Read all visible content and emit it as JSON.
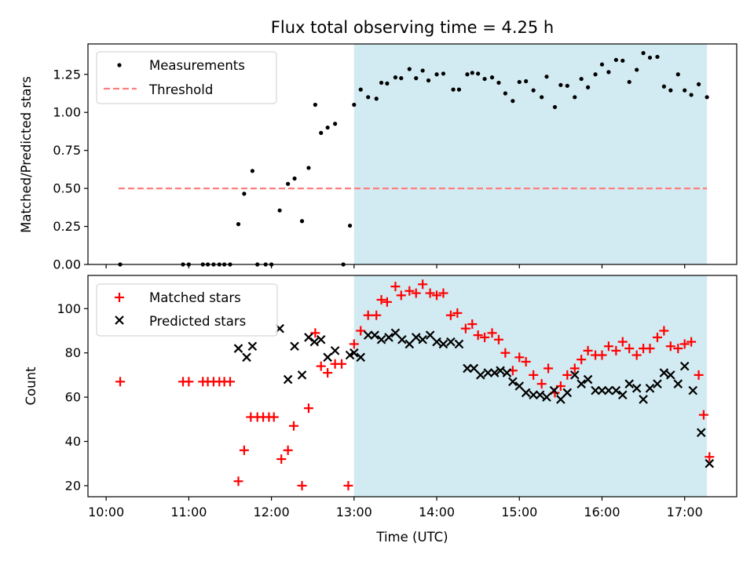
{
  "chart_data": {
    "title": "Flux total observing time = 4.25 h",
    "xlabel": "Time (UTC)",
    "x_unit": "hours UTC",
    "xlim": [
      9.78,
      17.63
    ],
    "x_tick_values": [
      10,
      11,
      12,
      13,
      14,
      15,
      16,
      17
    ],
    "x_tick_labels": [
      "10:00",
      "11:00",
      "12:00",
      "13:00",
      "14:00",
      "15:00",
      "16:00",
      "17:00"
    ],
    "shaded_region": {
      "x_range": [
        13.0,
        17.27
      ],
      "color": "#add8e6"
    },
    "panels": [
      {
        "type": "scatter",
        "ylabel": "Matched/Predicted stars",
        "ylim": [
          0,
          1.45
        ],
        "y_tick_values": [
          0.0,
          0.25,
          0.5,
          0.75,
          1.0,
          1.25
        ],
        "y_tick_labels": [
          "0.00",
          "0.25",
          "0.50",
          "0.75",
          "1.00",
          "1.25"
        ],
        "legend": {
          "position": "upper-left",
          "entries": [
            "Measurements",
            "Threshold"
          ]
        },
        "series": [
          {
            "name": "Measurements",
            "marker": "dot",
            "color": "#000000",
            "points": [
              [
                10.17,
                0.0
              ],
              [
                10.93,
                0.0
              ],
              [
                11.0,
                0.0
              ],
              [
                11.17,
                0.0
              ],
              [
                11.23,
                0.0
              ],
              [
                11.3,
                0.0
              ],
              [
                11.37,
                0.0
              ],
              [
                11.43,
                0.0
              ],
              [
                11.5,
                0.0
              ],
              [
                11.6,
                0.265
              ],
              [
                11.67,
                0.465
              ],
              [
                11.77,
                0.615
              ],
              [
                11.83,
                0.0
              ],
              [
                11.93,
                0.0
              ],
              [
                12.0,
                0.0
              ],
              [
                12.1,
                0.355
              ],
              [
                12.2,
                0.53
              ],
              [
                12.28,
                0.565
              ],
              [
                12.37,
                0.285
              ],
              [
                12.45,
                0.635
              ],
              [
                12.53,
                1.05
              ],
              [
                12.6,
                0.865
              ],
              [
                12.68,
                0.9
              ],
              [
                12.77,
                0.925
              ],
              [
                12.87,
                0.0
              ],
              [
                12.95,
                0.255
              ],
              [
                13.0,
                1.05
              ],
              [
                13.08,
                1.15
              ],
              [
                13.17,
                1.1
              ],
              [
                13.27,
                1.09
              ],
              [
                13.33,
                1.195
              ],
              [
                13.4,
                1.19
              ],
              [
                13.5,
                1.23
              ],
              [
                13.57,
                1.225
              ],
              [
                13.67,
                1.285
              ],
              [
                13.75,
                1.225
              ],
              [
                13.83,
                1.275
              ],
              [
                13.9,
                1.21
              ],
              [
                14.0,
                1.25
              ],
              [
                14.08,
                1.255
              ],
              [
                14.2,
                1.15
              ],
              [
                14.27,
                1.15
              ],
              [
                14.37,
                1.25
              ],
              [
                14.43,
                1.26
              ],
              [
                14.5,
                1.255
              ],
              [
                14.58,
                1.22
              ],
              [
                14.67,
                1.23
              ],
              [
                14.75,
                1.195
              ],
              [
                14.83,
                1.125
              ],
              [
                14.92,
                1.075
              ],
              [
                15.0,
                1.2
              ],
              [
                15.08,
                1.205
              ],
              [
                15.17,
                1.145
              ],
              [
                15.27,
                1.1
              ],
              [
                15.33,
                1.235
              ],
              [
                15.43,
                1.035
              ],
              [
                15.5,
                1.18
              ],
              [
                15.58,
                1.175
              ],
              [
                15.67,
                1.1
              ],
              [
                15.75,
                1.22
              ],
              [
                15.83,
                1.165
              ],
              [
                15.92,
                1.25
              ],
              [
                16.0,
                1.315
              ],
              [
                16.08,
                1.265
              ],
              [
                16.17,
                1.345
              ],
              [
                16.25,
                1.34
              ],
              [
                16.33,
                1.2
              ],
              [
                16.42,
                1.28
              ],
              [
                16.5,
                1.39
              ],
              [
                16.58,
                1.36
              ],
              [
                16.67,
                1.365
              ],
              [
                16.75,
                1.17
              ],
              [
                16.83,
                1.145
              ],
              [
                16.92,
                1.25
              ],
              [
                17.0,
                1.145
              ],
              [
                17.08,
                1.115
              ],
              [
                17.17,
                1.185
              ],
              [
                17.27,
                1.1
              ]
            ]
          },
          {
            "name": "Threshold",
            "style": "dashed-line",
            "color": "#ff7f7f",
            "points": [
              [
                10.15,
                0.5
              ],
              [
                17.27,
                0.5
              ]
            ]
          }
        ]
      },
      {
        "type": "scatter",
        "ylabel": "Count",
        "ylim": [
          15,
          115
        ],
        "y_tick_values": [
          20,
          40,
          60,
          80,
          100
        ],
        "y_tick_labels": [
          "20",
          "40",
          "60",
          "80",
          "100"
        ],
        "legend": {
          "position": "upper-left",
          "entries": [
            "Matched stars",
            "Predicted stars"
          ]
        },
        "series": [
          {
            "name": "Matched stars",
            "marker": "plus",
            "color": "#ff0000",
            "points": [
              [
                10.17,
                67
              ],
              [
                10.93,
                67
              ],
              [
                11.0,
                67
              ],
              [
                11.17,
                67
              ],
              [
                11.23,
                67
              ],
              [
                11.3,
                67
              ],
              [
                11.37,
                67
              ],
              [
                11.43,
                67
              ],
              [
                11.5,
                67
              ],
              [
                11.6,
                22
              ],
              [
                11.67,
                36
              ],
              [
                11.75,
                51
              ],
              [
                11.83,
                51
              ],
              [
                11.9,
                51
              ],
              [
                11.97,
                51
              ],
              [
                12.03,
                51
              ],
              [
                12.12,
                32
              ],
              [
                12.2,
                36
              ],
              [
                12.27,
                47
              ],
              [
                12.37,
                20
              ],
              [
                12.45,
                55
              ],
              [
                12.53,
                89
              ],
              [
                12.6,
                74
              ],
              [
                12.68,
                71
              ],
              [
                12.77,
                75
              ],
              [
                12.85,
                75
              ],
              [
                12.93,
                20
              ],
              [
                13.0,
                84
              ],
              [
                13.08,
                90
              ],
              [
                13.17,
                97
              ],
              [
                13.27,
                97
              ],
              [
                13.33,
                104
              ],
              [
                13.4,
                103
              ],
              [
                13.5,
                110
              ],
              [
                13.57,
                106
              ],
              [
                13.67,
                108
              ],
              [
                13.75,
                107
              ],
              [
                13.83,
                111
              ],
              [
                13.92,
                107
              ],
              [
                14.0,
                106
              ],
              [
                14.08,
                107
              ],
              [
                14.17,
                97
              ],
              [
                14.25,
                98
              ],
              [
                14.35,
                91
              ],
              [
                14.43,
                93
              ],
              [
                14.5,
                88
              ],
              [
                14.58,
                87
              ],
              [
                14.67,
                89
              ],
              [
                14.75,
                86
              ],
              [
                14.83,
                80
              ],
              [
                14.92,
                72
              ],
              [
                15.0,
                78
              ],
              [
                15.08,
                76
              ],
              [
                15.17,
                70
              ],
              [
                15.27,
                66
              ],
              [
                15.35,
                73
              ],
              [
                15.43,
                62
              ],
              [
                15.5,
                65
              ],
              [
                15.58,
                70
              ],
              [
                15.67,
                73
              ],
              [
                15.75,
                77
              ],
              [
                15.83,
                81
              ],
              [
                15.92,
                79
              ],
              [
                16.0,
                79
              ],
              [
                16.08,
                83
              ],
              [
                16.17,
                81
              ],
              [
                16.25,
                85
              ],
              [
                16.33,
                82
              ],
              [
                16.42,
                79
              ],
              [
                16.5,
                82
              ],
              [
                16.58,
                82
              ],
              [
                16.67,
                87
              ],
              [
                16.75,
                90
              ],
              [
                16.83,
                83
              ],
              [
                16.92,
                82
              ],
              [
                17.0,
                84
              ],
              [
                17.08,
                85
              ],
              [
                17.17,
                70
              ],
              [
                17.23,
                52
              ],
              [
                17.3,
                33
              ]
            ]
          },
          {
            "name": "Predicted stars",
            "marker": "x",
            "color": "#000000",
            "points": [
              [
                11.6,
                82
              ],
              [
                11.7,
                78
              ],
              [
                11.77,
                83
              ],
              [
                12.1,
                91
              ],
              [
                12.2,
                68
              ],
              [
                12.28,
                83
              ],
              [
                12.37,
                70
              ],
              [
                12.45,
                87
              ],
              [
                12.52,
                85
              ],
              [
                12.6,
                86
              ],
              [
                12.68,
                78
              ],
              [
                12.77,
                81
              ],
              [
                12.95,
                79
              ],
              [
                13.0,
                80
              ],
              [
                13.08,
                78
              ],
              [
                13.17,
                88
              ],
              [
                13.25,
                88
              ],
              [
                13.33,
                86
              ],
              [
                13.42,
                87
              ],
              [
                13.5,
                89
              ],
              [
                13.58,
                86
              ],
              [
                13.67,
                84
              ],
              [
                13.75,
                87
              ],
              [
                13.83,
                86
              ],
              [
                13.92,
                88
              ],
              [
                14.0,
                85
              ],
              [
                14.08,
                84
              ],
              [
                14.17,
                85
              ],
              [
                14.27,
                84
              ],
              [
                14.37,
                73
              ],
              [
                14.45,
                73
              ],
              [
                14.53,
                70
              ],
              [
                14.62,
                71
              ],
              [
                14.7,
                71
              ],
              [
                14.77,
                72
              ],
              [
                14.85,
                71
              ],
              [
                14.92,
                67
              ],
              [
                15.0,
                65
              ],
              [
                15.08,
                62
              ],
              [
                15.17,
                61
              ],
              [
                15.25,
                61
              ],
              [
                15.33,
                60
              ],
              [
                15.42,
                63
              ],
              [
                15.5,
                59
              ],
              [
                15.58,
                62
              ],
              [
                15.67,
                70
              ],
              [
                15.75,
                66
              ],
              [
                15.83,
                68
              ],
              [
                15.92,
                63
              ],
              [
                16.0,
                63
              ],
              [
                16.08,
                63
              ],
              [
                16.17,
                63
              ],
              [
                16.25,
                61
              ],
              [
                16.33,
                66
              ],
              [
                16.42,
                64
              ],
              [
                16.5,
                59
              ],
              [
                16.58,
                64
              ],
              [
                16.67,
                66
              ],
              [
                16.75,
                71
              ],
              [
                16.83,
                70
              ],
              [
                16.92,
                66
              ],
              [
                17.0,
                74
              ],
              [
                17.1,
                63
              ],
              [
                17.2,
                44
              ],
              [
                17.3,
                30
              ]
            ]
          }
        ]
      }
    ]
  }
}
